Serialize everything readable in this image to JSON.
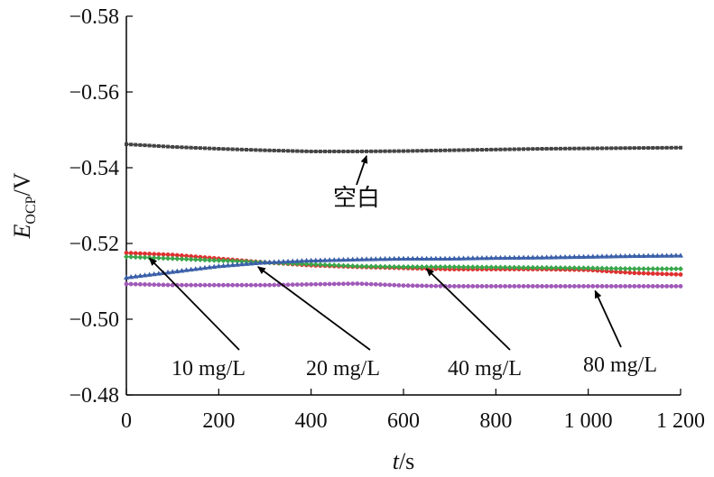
{
  "chart_data": {
    "type": "line",
    "title": "",
    "xlabel": {
      "var": "t",
      "unit": "/s"
    },
    "ylabel": {
      "var": "E",
      "sub": "OCP",
      "unit": "/V"
    },
    "xlim": [
      0,
      1200
    ],
    "ylim": [
      -0.58,
      -0.48
    ],
    "y_reversed": true,
    "grid": false,
    "x_ticks": [
      0,
      200,
      400,
      600,
      800,
      1000,
      1200
    ],
    "x_tick_labels": [
      "0",
      "200",
      "400",
      "600",
      "800",
      "1 000",
      "1 200"
    ],
    "y_ticks": [
      -0.58,
      -0.56,
      -0.54,
      -0.52,
      -0.5,
      -0.48
    ],
    "y_tick_labels": [
      "−0.58",
      "−0.56",
      "−0.54",
      "−0.52",
      "−0.50",
      "−0.48"
    ],
    "series": [
      {
        "name": "空白",
        "color": "#444444",
        "marker": "square",
        "x": [
          0,
          100,
          200,
          300,
          400,
          500,
          600,
          700,
          800,
          900,
          1000,
          1100,
          1200
        ],
        "y": [
          -0.5462,
          -0.5455,
          -0.545,
          -0.5446,
          -0.5443,
          -0.5443,
          -0.5444,
          -0.5446,
          -0.5448,
          -0.545,
          -0.5451,
          -0.5452,
          -0.5453
        ]
      },
      {
        "name": "10 mg/L",
        "color": "#e03030",
        "marker": "circle",
        "x": [
          0,
          100,
          200,
          300,
          400,
          500,
          600,
          700,
          800,
          900,
          1000,
          1100,
          1200
        ],
        "y": [
          -0.5175,
          -0.517,
          -0.516,
          -0.515,
          -0.5142,
          -0.5138,
          -0.5135,
          -0.5132,
          -0.5132,
          -0.5132,
          -0.513,
          -0.5122,
          -0.5118
        ]
      },
      {
        "name": "20 mg/L",
        "color": "#3aa64b",
        "marker": "diamond",
        "x": [
          0,
          100,
          200,
          300,
          400,
          500,
          600,
          700,
          800,
          900,
          1000,
          1100,
          1200
        ],
        "y": [
          -0.5165,
          -0.516,
          -0.5155,
          -0.515,
          -0.5145,
          -0.514,
          -0.5138,
          -0.5138,
          -0.5137,
          -0.5136,
          -0.5135,
          -0.5133,
          -0.5133
        ]
      },
      {
        "name": "40 mg/L",
        "color": "#3a5fa8",
        "marker": "triangle",
        "x": [
          0,
          100,
          200,
          300,
          400,
          500,
          600,
          700,
          800,
          900,
          1000,
          1100,
          1200
        ],
        "y": [
          -0.511,
          -0.5125,
          -0.514,
          -0.515,
          -0.5155,
          -0.5158,
          -0.516,
          -0.516,
          -0.5162,
          -0.5163,
          -0.5165,
          -0.5167,
          -0.5168
        ]
      },
      {
        "name": "80 mg/L",
        "color": "#a05ab8",
        "marker": "circle",
        "x": [
          0,
          100,
          200,
          300,
          400,
          500,
          600,
          700,
          800,
          900,
          1000,
          1100,
          1200
        ],
        "y": [
          -0.5093,
          -0.509,
          -0.509,
          -0.509,
          -0.5092,
          -0.5094,
          -0.5089,
          -0.5087,
          -0.5087,
          -0.5087,
          -0.5087,
          -0.5087,
          -0.5087
        ]
      }
    ],
    "annotations": [
      {
        "label": "空白",
        "series": "空白",
        "target_x": 520,
        "target_y": -0.5443
      },
      {
        "label": "10 mg/L",
        "series": "10 mg/L",
        "target_x": 50,
        "target_y": -0.5173
      },
      {
        "label": "20 mg/L",
        "series": "20 mg/L",
        "target_x": 285,
        "target_y": -0.515
      },
      {
        "label": "40 mg/L",
        "series": "40 mg/L",
        "target_x": 650,
        "target_y": -0.5145
      },
      {
        "label": "80 mg/L",
        "series": "80 mg/L",
        "target_x": 1015,
        "target_y": -0.5087
      }
    ]
  }
}
